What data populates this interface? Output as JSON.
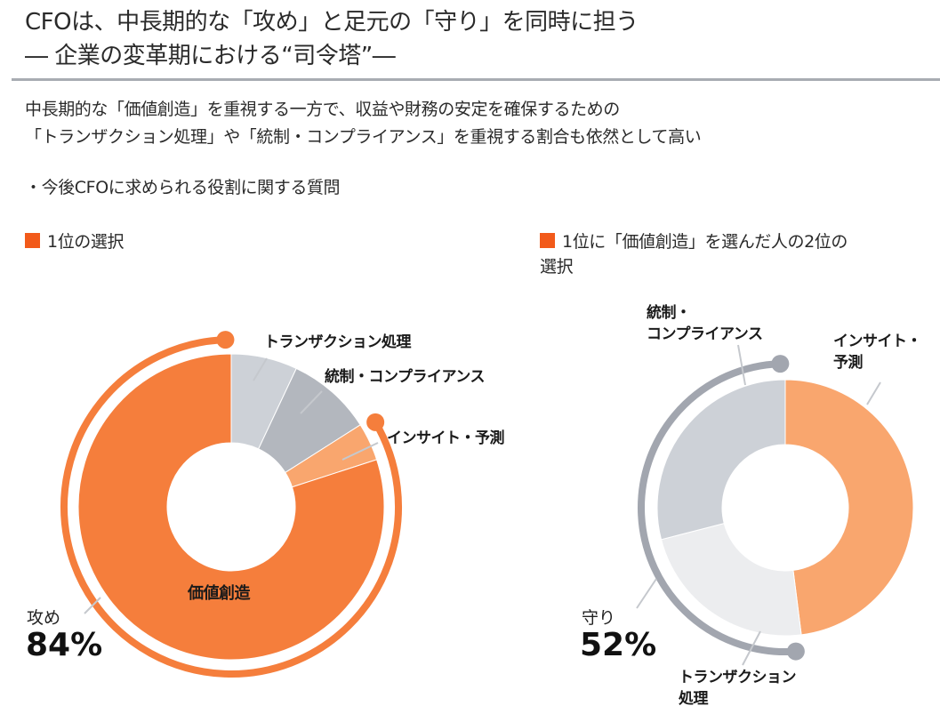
{
  "header": {
    "title_line1": "CFOは、中長期的な「攻め」と足元の「守り」を同時に担う",
    "title_line2": "― 企業の変革期における“司令塔”―"
  },
  "summary": {
    "line1": "中長期的な「価値創造」を重視する一方で、収益や財務の安定を確保するための",
    "line2": "「トランザクション処理」や「統制・コンプライアンス」を重視する割合も依然として高い"
  },
  "question": "・今後CFOに求められる役割に関する質問",
  "colors": {
    "legend": "#F25A1A",
    "orange": "#F57E3C",
    "light_orange": "#F9A66E",
    "gray_light": "#CDD1D7",
    "gray_mid": "#B3B7BE",
    "gray_pale": "#ECEDEF",
    "ring_gray": "#A2A6AF",
    "leader": "#C5C8CD"
  },
  "chart_data": [
    {
      "type": "pie",
      "variant": "donut",
      "title": "1位の選択",
      "categories": [
        "トランザクション処理",
        "統制・コンプライアンス",
        "インサイト・予測",
        "価値創造"
      ],
      "values": [
        7,
        9,
        4,
        80
      ],
      "unit": "%",
      "group": {
        "label": "攻め",
        "value": "84%",
        "members": [
          "インサイト・予測",
          "価値創造"
        ]
      }
    },
    {
      "type": "pie",
      "variant": "donut",
      "title": "1位に「価値創造」を選んだ人の2位の選択",
      "title_line1": "1位に「価値創造」を選んだ人の2位の",
      "title_line2": "選択",
      "categories": [
        "インサイト・予測",
        "トランザクション処理",
        "統制・コンプライアンス"
      ],
      "label_lines": [
        [
          "インサイト・",
          "予測"
        ],
        [
          "トランザクション",
          "処理"
        ],
        [
          "統制・",
          "コンプライアンス"
        ]
      ],
      "values": [
        48,
        23,
        29
      ],
      "unit": "%",
      "group": {
        "label": "守り",
        "value": "52%",
        "members": [
          "トランザクション処理",
          "統制・コンプライアンス"
        ]
      }
    }
  ]
}
